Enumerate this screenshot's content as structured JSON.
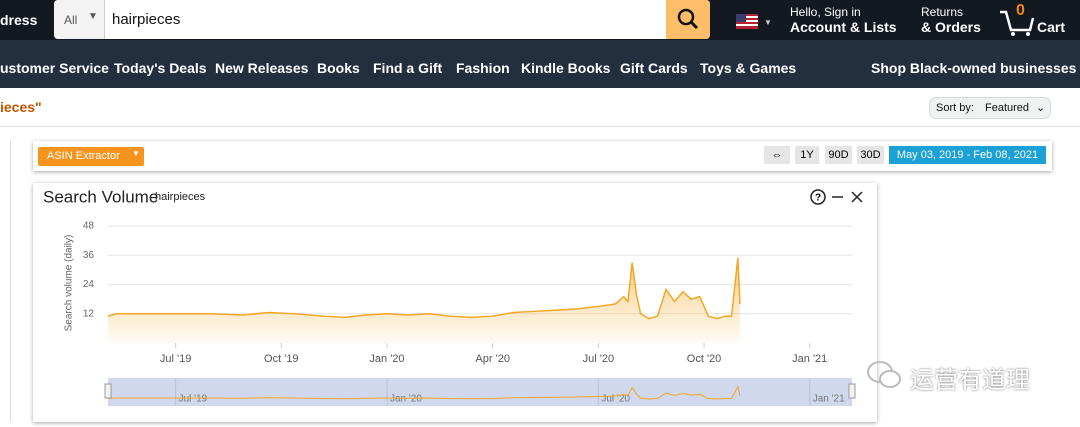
{
  "nav": {
    "address_fragment": "dress",
    "search_category": "All",
    "search_query": "hairpieces",
    "greeting": "Hello, Sign in",
    "account": "Account & Lists",
    "returns": "Returns",
    "orders": "& Orders",
    "cart_count": 0,
    "cart": "Cart"
  },
  "menu": [
    "ustomer Service",
    "Today's Deals",
    "New Releases",
    "Books",
    "Find a Gift",
    "Fashion",
    "Kindle Books",
    "Gift Cards",
    "Toys & Games"
  ],
  "menu_right": "Shop Black-owned businesses",
  "results_fragment": "ieces\"",
  "sort": {
    "label": "Sort by:",
    "value": "Featured"
  },
  "toolbar": {
    "extractor": "ASIN Extractor",
    "buttons": [
      "⇔",
      "1Y",
      "90D",
      "30D"
    ],
    "date_range": "May 03, 2019 - Feb 08, 2021"
  },
  "chart_data": {
    "type": "line",
    "title": "Search Volume",
    "subtitle": "hairpieces",
    "y_label": "Search volume (daily)",
    "x": [
      2019.34,
      2019.36,
      2019.42,
      2019.5,
      2019.58,
      2019.66,
      2019.72,
      2019.78,
      2019.85,
      2019.9,
      2019.95,
      2020.0,
      2020.05,
      2020.1,
      2020.15,
      2020.2,
      2020.25,
      2020.3,
      2020.35,
      2020.4,
      2020.45,
      2020.5,
      2020.54,
      2020.56,
      2020.57,
      2020.58,
      2020.59,
      2020.6,
      2020.62,
      2020.64,
      2020.66,
      2020.68,
      2020.7,
      2020.72,
      2020.74,
      2020.76,
      2020.78,
      2020.8,
      2020.815,
      2020.82,
      2020.83,
      2020.835
    ],
    "series": [
      {
        "color": "#f5a623",
        "values": [
          11,
          12,
          12,
          12,
          12,
          11.5,
          12.5,
          12,
          11,
          10.5,
          11.5,
          12,
          11.5,
          12,
          11,
          10.5,
          11,
          12.5,
          13,
          13.5,
          14,
          15,
          16,
          19,
          17,
          33,
          20,
          12,
          10,
          11,
          22,
          17,
          21,
          18,
          19,
          11,
          10,
          11,
          11,
          19,
          35,
          16
        ]
      }
    ],
    "xlim": [
      2019.34,
      2021.1
    ],
    "ylim": [
      0,
      48
    ],
    "xticks": [
      {
        "value": 2019.5,
        "label": "Jul '19"
      },
      {
        "value": 2019.75,
        "label": "Oct '19"
      },
      {
        "value": 2020.0,
        "label": "Jan '20"
      },
      {
        "value": 2020.25,
        "label": "Apr '20"
      },
      {
        "value": 2020.5,
        "label": "Jul '20"
      },
      {
        "value": 2020.75,
        "label": "Oct '20"
      },
      {
        "value": 2021.0,
        "label": "Jan '21"
      }
    ],
    "yticks": [
      12,
      24,
      36,
      48
    ],
    "navigator_xticks": [
      {
        "value": 2019.5,
        "label": "Jul '19"
      },
      {
        "value": 2020.0,
        "label": "Jan '20"
      },
      {
        "value": 2020.5,
        "label": "Jul '20"
      },
      {
        "value": 2021.0,
        "label": "Jan '21"
      }
    ],
    "grid": true
  },
  "watermark": "运营有道理"
}
